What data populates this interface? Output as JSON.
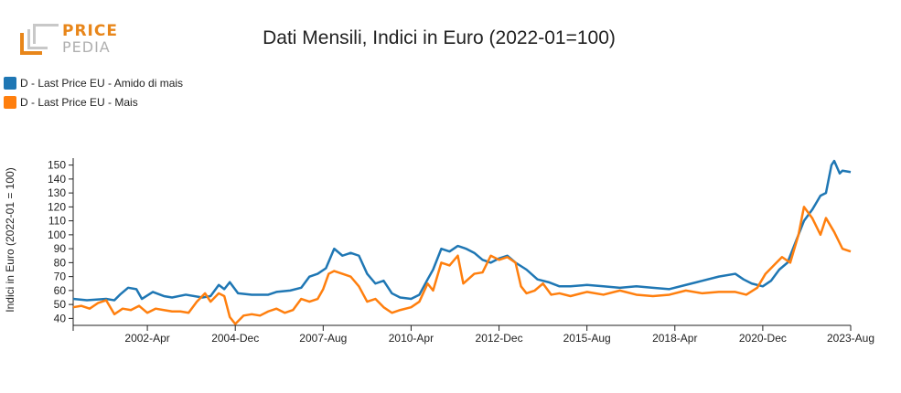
{
  "brand": {
    "line1": "PRICE",
    "line2": "PEDIA",
    "color_dark": "#e8861a",
    "color_light": "#bfbfbf",
    "text_dark": "#e8861a",
    "text_light": "#b0b0b0"
  },
  "chart_data": {
    "type": "line",
    "title": "Dati Mensili, Indici in Euro (2022-01=100)",
    "ylabel": "Indici in Euro (2022-01 = 100)",
    "xlabel": "",
    "ylim": [
      35,
      155
    ],
    "yticks": [
      40,
      50,
      60,
      70,
      80,
      90,
      100,
      110,
      120,
      130,
      140,
      150
    ],
    "x_start": "2000-01",
    "x_end": "2023-08",
    "xticks": [
      {
        "label": "2002-Apr",
        "t": "2002-04"
      },
      {
        "label": "2004-Dec",
        "t": "2004-12"
      },
      {
        "label": "2007-Aug",
        "t": "2007-08"
      },
      {
        "label": "2010-Apr",
        "t": "2010-04"
      },
      {
        "label": "2012-Dec",
        "t": "2012-12"
      },
      {
        "label": "2015-Aug",
        "t": "2015-08"
      },
      {
        "label": "2018-Apr",
        "t": "2018-04"
      },
      {
        "label": "2020-Dec",
        "t": "2020-12"
      },
      {
        "label": "2023-Aug",
        "t": "2023-08"
      }
    ],
    "grid": false,
    "legend_position": "top-left",
    "series": [
      {
        "name": "D - Last Price EU - Amido di mais",
        "color": "#1f77b4",
        "points": [
          [
            "2000-01",
            54
          ],
          [
            "2000-06",
            53
          ],
          [
            "2001-01",
            54
          ],
          [
            "2001-04",
            53
          ],
          [
            "2001-06",
            57
          ],
          [
            "2001-09",
            62
          ],
          [
            "2001-12",
            61
          ],
          [
            "2002-02",
            54
          ],
          [
            "2002-06",
            59
          ],
          [
            "2002-10",
            56
          ],
          [
            "2003-01",
            55
          ],
          [
            "2003-06",
            57
          ],
          [
            "2003-12",
            55
          ],
          [
            "2004-03",
            56
          ],
          [
            "2004-06",
            64
          ],
          [
            "2004-08",
            61
          ],
          [
            "2004-10",
            66
          ],
          [
            "2005-01",
            58
          ],
          [
            "2005-06",
            57
          ],
          [
            "2005-12",
            57
          ],
          [
            "2006-03",
            59
          ],
          [
            "2006-08",
            60
          ],
          [
            "2006-12",
            62
          ],
          [
            "2007-03",
            70
          ],
          [
            "2007-06",
            72
          ],
          [
            "2007-09",
            76
          ],
          [
            "2007-12",
            90
          ],
          [
            "2008-03",
            85
          ],
          [
            "2008-06",
            87
          ],
          [
            "2008-09",
            85
          ],
          [
            "2008-12",
            72
          ],
          [
            "2009-03",
            65
          ],
          [
            "2009-06",
            67
          ],
          [
            "2009-09",
            58
          ],
          [
            "2009-12",
            55
          ],
          [
            "2010-04",
            54
          ],
          [
            "2010-07",
            57
          ],
          [
            "2010-10",
            68
          ],
          [
            "2010-12",
            75
          ],
          [
            "2011-03",
            90
          ],
          [
            "2011-06",
            88
          ],
          [
            "2011-09",
            92
          ],
          [
            "2011-12",
            90
          ],
          [
            "2012-03",
            87
          ],
          [
            "2012-06",
            82
          ],
          [
            "2012-09",
            80
          ],
          [
            "2012-12",
            83
          ],
          [
            "2013-03",
            85
          ],
          [
            "2013-06",
            80
          ],
          [
            "2013-10",
            75
          ],
          [
            "2014-02",
            68
          ],
          [
            "2014-06",
            66
          ],
          [
            "2014-10",
            63
          ],
          [
            "2015-02",
            63
          ],
          [
            "2015-08",
            64
          ],
          [
            "2016-02",
            63
          ],
          [
            "2016-08",
            62
          ],
          [
            "2017-02",
            63
          ],
          [
            "2017-08",
            62
          ],
          [
            "2018-02",
            61
          ],
          [
            "2018-08",
            64
          ],
          [
            "2019-02",
            67
          ],
          [
            "2019-08",
            70
          ],
          [
            "2020-02",
            72
          ],
          [
            "2020-05",
            68
          ],
          [
            "2020-08",
            65
          ],
          [
            "2020-12",
            63
          ],
          [
            "2021-03",
            67
          ],
          [
            "2021-06",
            75
          ],
          [
            "2021-09",
            80
          ],
          [
            "2021-12",
            95
          ],
          [
            "2022-03",
            110
          ],
          [
            "2022-06",
            118
          ],
          [
            "2022-09",
            128
          ],
          [
            "2022-11",
            130
          ],
          [
            "2023-01",
            150
          ],
          [
            "2023-02",
            153
          ],
          [
            "2023-04",
            144
          ],
          [
            "2023-05",
            146
          ],
          [
            "2023-08",
            145
          ]
        ]
      },
      {
        "name": "D - Last Price EU - Mais",
        "color": "#ff7f0e",
        "points": [
          [
            "2000-01",
            48
          ],
          [
            "2000-04",
            49
          ],
          [
            "2000-07",
            47
          ],
          [
            "2000-10",
            51
          ],
          [
            "2001-01",
            53
          ],
          [
            "2001-04",
            43
          ],
          [
            "2001-07",
            47
          ],
          [
            "2001-10",
            46
          ],
          [
            "2002-01",
            49
          ],
          [
            "2002-04",
            44
          ],
          [
            "2002-07",
            47
          ],
          [
            "2002-10",
            46
          ],
          [
            "2003-01",
            45
          ],
          [
            "2003-04",
            45
          ],
          [
            "2003-07",
            44
          ],
          [
            "2003-10",
            52
          ],
          [
            "2004-01",
            58
          ],
          [
            "2004-03",
            52
          ],
          [
            "2004-06",
            58
          ],
          [
            "2004-08",
            56
          ],
          [
            "2004-10",
            41
          ],
          [
            "2004-12",
            36
          ],
          [
            "2005-03",
            42
          ],
          [
            "2005-06",
            43
          ],
          [
            "2005-09",
            42
          ],
          [
            "2005-12",
            45
          ],
          [
            "2006-03",
            47
          ],
          [
            "2006-06",
            44
          ],
          [
            "2006-09",
            46
          ],
          [
            "2006-12",
            54
          ],
          [
            "2007-03",
            52
          ],
          [
            "2007-06",
            54
          ],
          [
            "2007-08",
            61
          ],
          [
            "2007-10",
            72
          ],
          [
            "2007-12",
            74
          ],
          [
            "2008-03",
            72
          ],
          [
            "2008-06",
            70
          ],
          [
            "2008-09",
            63
          ],
          [
            "2008-12",
            52
          ],
          [
            "2009-03",
            54
          ],
          [
            "2009-06",
            48
          ],
          [
            "2009-09",
            44
          ],
          [
            "2009-12",
            46
          ],
          [
            "2010-04",
            48
          ],
          [
            "2010-07",
            52
          ],
          [
            "2010-10",
            65
          ],
          [
            "2010-12",
            60
          ],
          [
            "2011-03",
            80
          ],
          [
            "2011-06",
            78
          ],
          [
            "2011-09",
            85
          ],
          [
            "2011-11",
            65
          ],
          [
            "2012-03",
            72
          ],
          [
            "2012-06",
            73
          ],
          [
            "2012-09",
            85
          ],
          [
            "2012-12",
            82
          ],
          [
            "2013-03",
            84
          ],
          [
            "2013-06",
            80
          ],
          [
            "2013-08",
            63
          ],
          [
            "2013-10",
            58
          ],
          [
            "2014-01",
            60
          ],
          [
            "2014-04",
            65
          ],
          [
            "2014-07",
            57
          ],
          [
            "2014-10",
            58
          ],
          [
            "2015-02",
            56
          ],
          [
            "2015-08",
            59
          ],
          [
            "2016-02",
            57
          ],
          [
            "2016-08",
            60
          ],
          [
            "2017-02",
            57
          ],
          [
            "2017-08",
            56
          ],
          [
            "2018-02",
            57
          ],
          [
            "2018-08",
            60
          ],
          [
            "2019-02",
            58
          ],
          [
            "2019-08",
            59
          ],
          [
            "2020-02",
            59
          ],
          [
            "2020-06",
            57
          ],
          [
            "2020-10",
            62
          ],
          [
            "2021-01",
            72
          ],
          [
            "2021-04",
            78
          ],
          [
            "2021-07",
            84
          ],
          [
            "2021-10",
            80
          ],
          [
            "2022-01",
            100
          ],
          [
            "2022-03",
            120
          ],
          [
            "2022-06",
            112
          ],
          [
            "2022-09",
            100
          ],
          [
            "2022-11",
            112
          ],
          [
            "2023-02",
            102
          ],
          [
            "2023-05",
            90
          ],
          [
            "2023-08",
            88
          ]
        ]
      }
    ]
  }
}
